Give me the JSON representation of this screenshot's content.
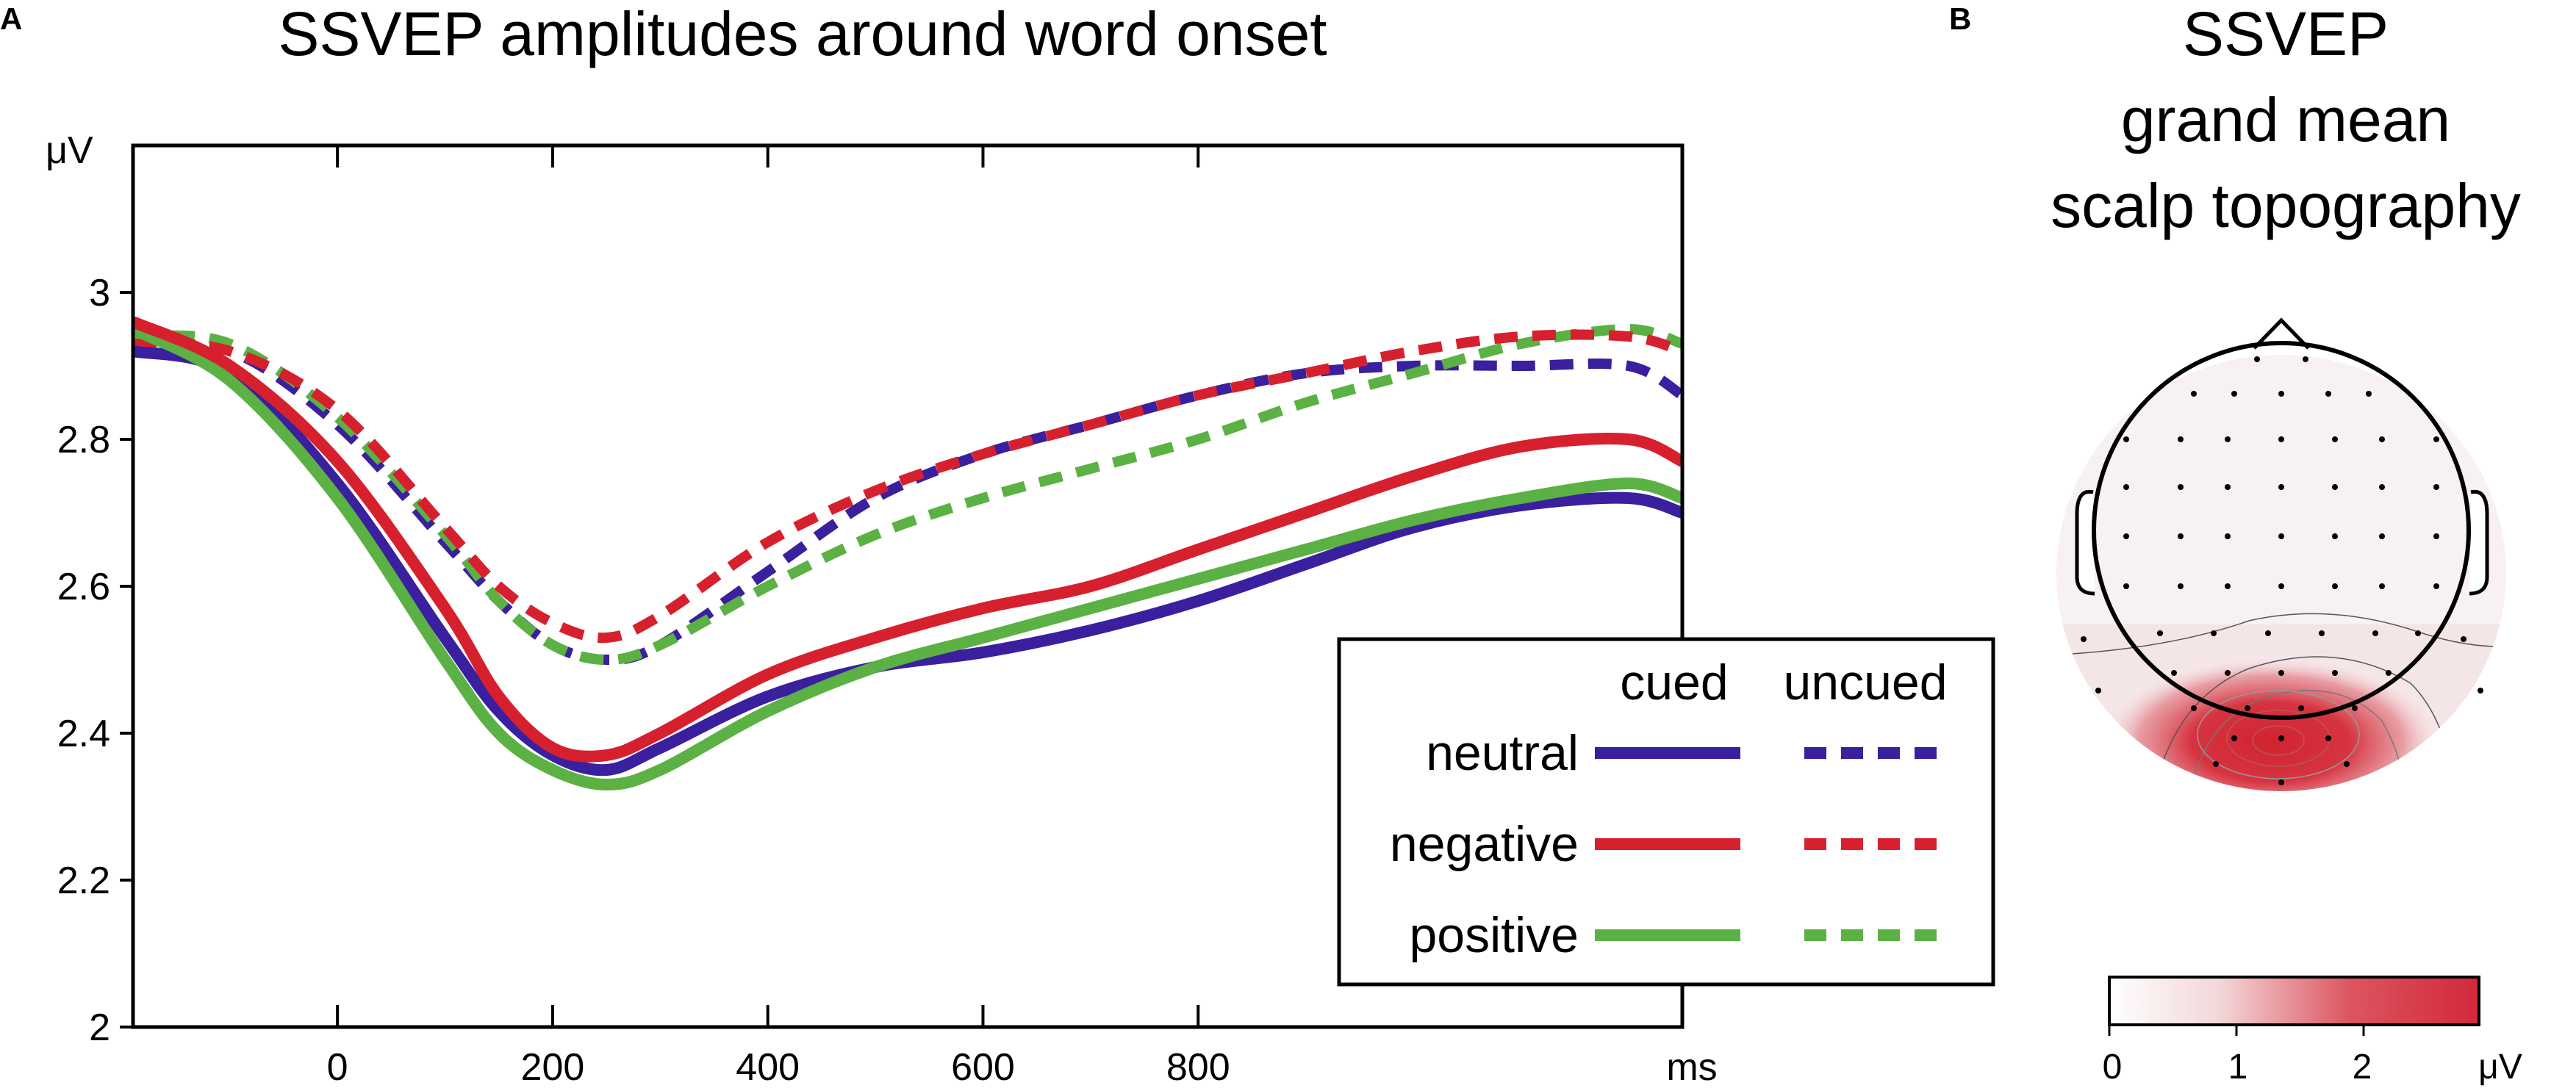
{
  "panel_a": {
    "letter": "A",
    "title": "SSVEP amplitudes around word onset",
    "y_unit": "μV",
    "x_unit": "ms",
    "legend": {
      "col_cued": "cued",
      "col_uncued": "uncued",
      "rows": [
        "neutral",
        "negative",
        "positive"
      ]
    }
  },
  "panel_b": {
    "letter": "B",
    "title_lines": [
      "SSVEP",
      "grand mean",
      "scalp topography"
    ],
    "colorbar": {
      "ticks": [
        "0",
        "1",
        "2"
      ],
      "unit": "μV",
      "range": [
        0,
        2.8
      ],
      "color_low": "#ffffff",
      "color_high": "#d3293b"
    }
  },
  "chart_data": [
    {
      "type": "line",
      "title": "SSVEP amplitudes around word onset",
      "xlabel": "ms",
      "ylabel": "μV",
      "xlim": [
        -190,
        1250
      ],
      "ylim": [
        2,
        3.2
      ],
      "xticks": [
        0,
        200,
        400,
        600,
        800
      ],
      "yticks": [
        2,
        2.2,
        2.4,
        2.6,
        2.8,
        3
      ],
      "grid": false,
      "legend_position": "bottom-right",
      "x": [
        -190,
        -100,
        0,
        100,
        150,
        200,
        250,
        300,
        400,
        500,
        600,
        700,
        800,
        900,
        1000,
        1100,
        1200,
        1250
      ],
      "series": [
        {
          "name": "neutral cued",
          "color": "#3a1f9e",
          "dash": false,
          "values": [
            2.92,
            2.89,
            2.74,
            2.53,
            2.43,
            2.37,
            2.35,
            2.38,
            2.45,
            2.49,
            2.51,
            2.54,
            2.58,
            2.63,
            2.68,
            2.71,
            2.72,
            2.7
          ]
        },
        {
          "name": "negative cued",
          "color": "#d7202e",
          "dash": false,
          "values": [
            2.96,
            2.9,
            2.77,
            2.57,
            2.45,
            2.38,
            2.37,
            2.4,
            2.48,
            2.53,
            2.57,
            2.6,
            2.65,
            2.7,
            2.75,
            2.79,
            2.8,
            2.77
          ]
        },
        {
          "name": "positive cued",
          "color": "#5bb143",
          "dash": false,
          "values": [
            2.95,
            2.88,
            2.72,
            2.5,
            2.4,
            2.35,
            2.33,
            2.35,
            2.43,
            2.49,
            2.53,
            2.57,
            2.61,
            2.65,
            2.69,
            2.72,
            2.74,
            2.72
          ]
        },
        {
          "name": "neutral uncued",
          "color": "#3a1f9e",
          "dash": true,
          "values": [
            2.92,
            2.92,
            2.82,
            2.66,
            2.58,
            2.52,
            2.5,
            2.52,
            2.62,
            2.72,
            2.78,
            2.82,
            2.86,
            2.89,
            2.9,
            2.9,
            2.9,
            2.86
          ]
        },
        {
          "name": "negative uncued",
          "color": "#d7202e",
          "dash": true,
          "values": [
            2.93,
            2.92,
            2.84,
            2.68,
            2.6,
            2.55,
            2.53,
            2.56,
            2.66,
            2.73,
            2.78,
            2.82,
            2.86,
            2.89,
            2.92,
            2.94,
            2.94,
            2.92
          ]
        },
        {
          "name": "positive uncued",
          "color": "#5bb143",
          "dash": true,
          "values": [
            2.94,
            2.93,
            2.83,
            2.67,
            2.58,
            2.52,
            2.5,
            2.52,
            2.6,
            2.67,
            2.72,
            2.76,
            2.8,
            2.85,
            2.89,
            2.93,
            2.95,
            2.93
          ]
        }
      ]
    }
  ]
}
